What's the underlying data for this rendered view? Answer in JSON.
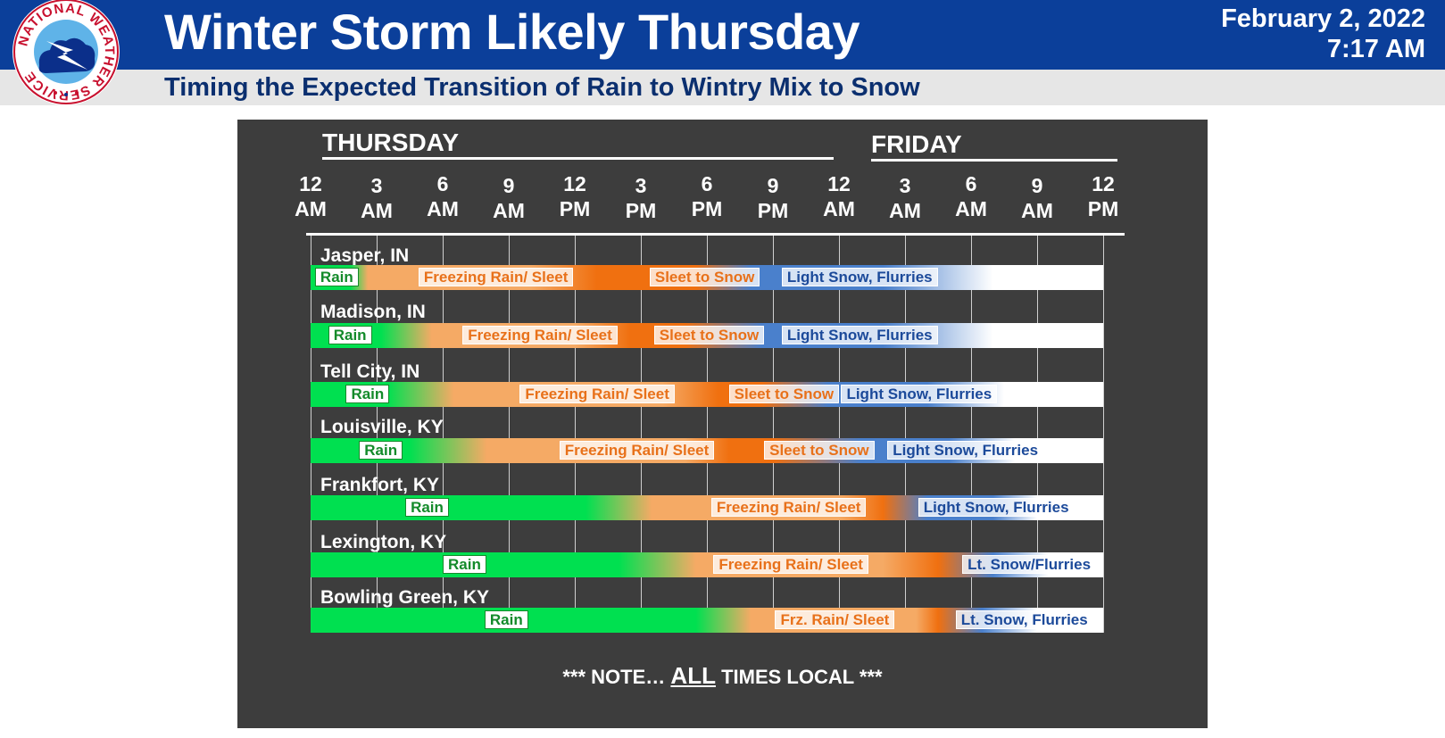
{
  "header": {
    "title": "Winter Storm Likely Thursday",
    "subtitle": "Timing the Expected Transition of Rain to Wintry Mix to Snow",
    "date": "February 2, 2022",
    "time": "7:17 AM"
  },
  "logo": {
    "icon": "nws-logo-icon",
    "text": "NATIONAL WEATHER SERVICE"
  },
  "colors": {
    "header": "#0b3f9a",
    "rain": "#00e050",
    "ice": "#f5aa65",
    "ice_dark": "#f07010",
    "snow": "#4a80cc",
    "light_snow": "#ffffff",
    "panel": "#3d3d3d"
  },
  "days": [
    "THURSDAY",
    "FRIDAY"
  ],
  "ticks": [
    {
      "hour": 0,
      "num": "12",
      "ampm": "AM"
    },
    {
      "hour": 3,
      "num": "3",
      "ampm": "AM"
    },
    {
      "hour": 6,
      "num": "6",
      "ampm": "AM"
    },
    {
      "hour": 9,
      "num": "9",
      "ampm": "AM"
    },
    {
      "hour": 12,
      "num": "12",
      "ampm": "PM"
    },
    {
      "hour": 15,
      "num": "3",
      "ampm": "PM"
    },
    {
      "hour": 18,
      "num": "6",
      "ampm": "PM"
    },
    {
      "hour": 21,
      "num": "9",
      "ampm": "PM"
    },
    {
      "hour": 24,
      "num": "12",
      "ampm": "AM"
    },
    {
      "hour": 27,
      "num": "3",
      "ampm": "AM"
    },
    {
      "hour": 30,
      "num": "6",
      "ampm": "AM"
    },
    {
      "hour": 33,
      "num": "9",
      "ampm": "AM"
    },
    {
      "hour": 36,
      "num": "12",
      "ampm": "PM"
    }
  ],
  "cities": [
    {
      "name": "Jasper, IN",
      "stops": [
        [
          "#00e050",
          0
        ],
        [
          "#00e050",
          1.8
        ],
        [
          "#f5aa65",
          2.6
        ],
        [
          "#f5aa65",
          10
        ],
        [
          "#f07010",
          13
        ],
        [
          "#f07010",
          15.5
        ],
        [
          "#f07010",
          17.5
        ],
        [
          "#4a80cc",
          20
        ],
        [
          "#4a80cc",
          26
        ],
        [
          "#ffffff",
          31
        ],
        [
          "#ffffff",
          36
        ]
      ],
      "labels": [
        {
          "text": "Rain",
          "type": "rain",
          "h": 0.2
        },
        {
          "text": "Freezing Rain/ Sleet",
          "type": "frz",
          "h": 4.9
        },
        {
          "text": "Sleet to Snow",
          "type": "slt",
          "h": 15.4
        },
        {
          "text": "Light Snow, Flurries",
          "type": "snow",
          "h": 21.4
        }
      ]
    },
    {
      "name": "Madison, IN",
      "stops": [
        [
          "#00e050",
          0
        ],
        [
          "#00e050",
          3.2
        ],
        [
          "#f5aa65",
          5.5
        ],
        [
          "#f5aa65",
          12
        ],
        [
          "#f07010",
          14.5
        ],
        [
          "#f07010",
          17
        ],
        [
          "#4a80cc",
          20.5
        ],
        [
          "#4a80cc",
          26
        ],
        [
          "#ffffff",
          31
        ],
        [
          "#ffffff",
          36
        ]
      ],
      "labels": [
        {
          "text": "Rain",
          "type": "rain",
          "h": 0.8
        },
        {
          "text": "Freezing Rain/ Sleet",
          "type": "frz",
          "h": 6.9
        },
        {
          "text": "Sleet to Snow",
          "type": "slt",
          "h": 15.6
        },
        {
          "text": "Light Snow, Flurries",
          "type": "snow",
          "h": 21.4
        }
      ]
    },
    {
      "name": "Tell City, IN",
      "stops": [
        [
          "#00e050",
          0
        ],
        [
          "#00e050",
          3.5
        ],
        [
          "#f5aa65",
          6.5
        ],
        [
          "#f5aa65",
          16
        ],
        [
          "#f07010",
          18.5
        ],
        [
          "#f07010",
          20.5
        ],
        [
          "#4a80cc",
          23.5
        ],
        [
          "#4a80cc",
          28
        ],
        [
          "#ffffff",
          31.5
        ],
        [
          "#ffffff",
          36
        ]
      ],
      "labels": [
        {
          "text": "Rain",
          "type": "rain",
          "h": 1.6
        },
        {
          "text": "Freezing Rain/ Sleet",
          "type": "frz",
          "h": 9.5
        },
        {
          "text": "Sleet to Snow",
          "type": "slt",
          "h": 19.0
        },
        {
          "text": "Light Snow, Flurries",
          "type": "snow",
          "h": 24.1
        }
      ]
    },
    {
      "name": "Louisville, KY",
      "stops": [
        [
          "#00e050",
          0
        ],
        [
          "#00e050",
          4.5
        ],
        [
          "#f5aa65",
          8
        ],
        [
          "#f5aa65",
          17
        ],
        [
          "#f07010",
          19
        ],
        [
          "#f07010",
          21
        ],
        [
          "#4a80cc",
          25
        ],
        [
          "#4a80cc",
          29
        ],
        [
          "#ffffff",
          32
        ],
        [
          "#ffffff",
          36
        ]
      ],
      "labels": [
        {
          "text": "Rain",
          "type": "rain",
          "h": 2.2
        },
        {
          "text": "Freezing Rain/ Sleet",
          "type": "frz",
          "h": 11.3
        },
        {
          "text": "Sleet to Snow",
          "type": "slt",
          "h": 20.6
        },
        {
          "text": "Light Snow, Flurries",
          "type": "snow",
          "h": 26.2
        }
      ]
    },
    {
      "name": "Frankfort, KY",
      "stops": [
        [
          "#00e050",
          0
        ],
        [
          "#00e050",
          12.5
        ],
        [
          "#f5aa65",
          15.5
        ],
        [
          "#f5aa65",
          24
        ],
        [
          "#f07010",
          26
        ],
        [
          "#4a80cc",
          28
        ],
        [
          "#4a80cc",
          31
        ],
        [
          "#ffffff",
          33
        ],
        [
          "#ffffff",
          36
        ]
      ],
      "labels": [
        {
          "text": "Rain",
          "type": "rain",
          "h": 4.3
        },
        {
          "text": "Freezing Rain/ Sleet",
          "type": "frz",
          "h": 18.2
        },
        {
          "text": "Light Snow, Flurries",
          "type": "snow",
          "h": 27.6
        }
      ]
    },
    {
      "name": "Lexington, KY",
      "stops": [
        [
          "#00e050",
          0
        ],
        [
          "#00e050",
          14
        ],
        [
          "#f5aa65",
          17.5
        ],
        [
          "#f5aa65",
          26
        ],
        [
          "#f07010",
          28.5
        ],
        [
          "#4a80cc",
          31
        ],
        [
          "#ffffff",
          33.5
        ],
        [
          "#ffffff",
          36
        ]
      ],
      "labels": [
        {
          "text": "Rain",
          "type": "rain",
          "h": 6.0
        },
        {
          "text": "Freezing Rain/ Sleet",
          "type": "frz",
          "h": 18.3
        },
        {
          "text": "Lt. Snow/Flurries",
          "type": "snow",
          "h": 29.6
        }
      ]
    },
    {
      "name": "Bowling Green, KY",
      "stops": [
        [
          "#00e050",
          0
        ],
        [
          "#00e050",
          17.5
        ],
        [
          "#f5aa65",
          20
        ],
        [
          "#f5aa65",
          27.5
        ],
        [
          "#f07010",
          28.5
        ],
        [
          "#4a80cc",
          30.5
        ],
        [
          "#ffffff",
          33
        ],
        [
          "#ffffff",
          36
        ]
      ],
      "labels": [
        {
          "text": "Rain",
          "type": "rain",
          "h": 7.9
        },
        {
          "text": "Frz. Rain/ Sleet",
          "type": "frz",
          "h": 21.1
        },
        {
          "text": "Lt. Snow, Flurries",
          "type": "snow",
          "h": 29.3
        }
      ]
    }
  ],
  "note": {
    "pre": "*** NOTE…",
    "all": "ALL",
    "post": "TIMES LOCAL ***"
  }
}
